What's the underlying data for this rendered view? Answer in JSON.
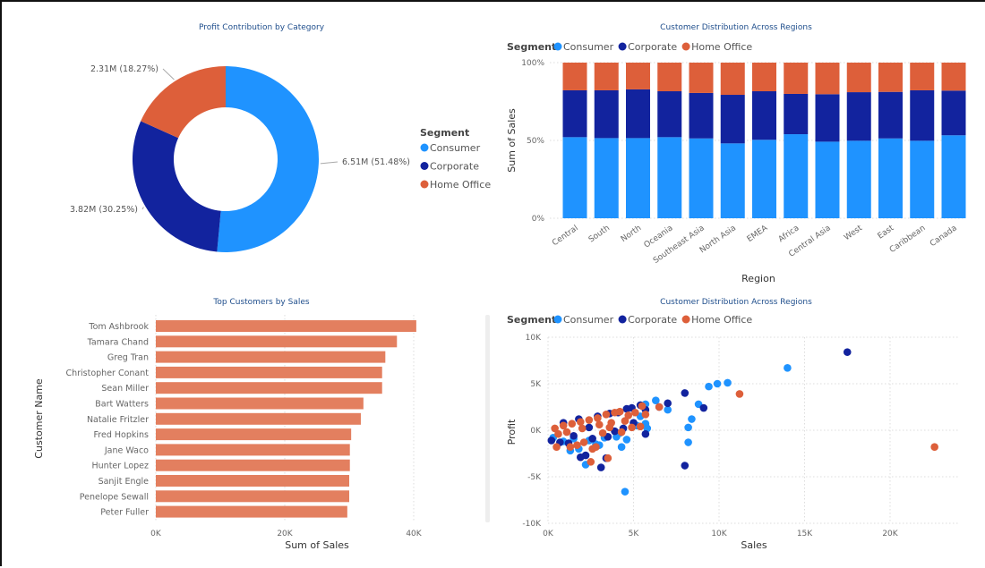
{
  "colors": {
    "Consumer": "#1f93ff",
    "Corporate": "#12239e",
    "Home Office": "#dd5f3a",
    "bar": "#e37f5f",
    "title": "#1f4e8c"
  },
  "chart_data": [
    {
      "type": "pie",
      "title": "Profit Contribution by Category",
      "legend_title": "Segment",
      "legend_position": "right",
      "slices": [
        {
          "name": "Consumer",
          "value": 6.51,
          "label": "6.51M (51.48%)",
          "percent": 51.48
        },
        {
          "name": "Corporate",
          "value": 3.82,
          "label": "3.82M (30.25%)",
          "percent": 30.25
        },
        {
          "name": "Home Office",
          "value": 2.31,
          "label": "2.31M (18.27%)",
          "percent": 18.27
        }
      ]
    },
    {
      "type": "bar",
      "stacked": "percent",
      "title": "Customer Distribution Across Regions",
      "legend_title": "Segment",
      "legend_position": "top-left",
      "xlabel": "Region",
      "ylabel": "Sum of Sales",
      "yticks": [
        "0%",
        "50%",
        "100%"
      ],
      "categories": [
        "Central",
        "South",
        "North",
        "Oceania",
        "Southeast Asia",
        "North Asia",
        "EMEA",
        "Africa",
        "Central Asia",
        "West",
        "East",
        "Caribbean",
        "Canada"
      ],
      "series": [
        {
          "name": "Consumer",
          "values": [
            52.1,
            51.5,
            51.5,
            52.1,
            51.3,
            48.1,
            50.4,
            54.0,
            49.2,
            49.8,
            51.3,
            49.8,
            53.3
          ]
        },
        {
          "name": "Corporate",
          "values": [
            30.1,
            30.7,
            31.3,
            29.5,
            29.2,
            31.2,
            31.2,
            25.9,
            30.5,
            31.2,
            29.9,
            32.4,
            28.7
          ]
        },
        {
          "name": "Home Office",
          "values": [
            17.8,
            17.8,
            17.2,
            18.4,
            19.5,
            20.7,
            18.4,
            20.1,
            20.3,
            19.0,
            18.8,
            17.8,
            18.0
          ]
        }
      ]
    },
    {
      "type": "bar",
      "orientation": "horizontal",
      "title": "Top Customers by Sales",
      "xlabel": "Sum of Sales",
      "ylabel": "Customer Name",
      "xlim": [
        0,
        40000
      ],
      "xticks": [
        "0K",
        "20K",
        "40K"
      ],
      "categories": [
        "Tom Ashbrook",
        "Tamara Chand",
        "Greg Tran",
        "Christopher Conant",
        "Sean Miller",
        "Bart Watters",
        "Natalie Fritzler",
        "Fred Hopkins",
        "Jane Waco",
        "Hunter Lopez",
        "Sanjit Engle",
        "Penelope Sewall",
        "Peter Fuller"
      ],
      "values": [
        40400,
        37400,
        35600,
        35100,
        35100,
        32200,
        31800,
        30300,
        30100,
        30100,
        30000,
        30000,
        29700
      ]
    },
    {
      "type": "scatter",
      "title": "Customer Distribution Across Regions",
      "legend_title": "Segment",
      "legend_position": "top-left",
      "xlabel": "Sales",
      "ylabel": "Profit",
      "xlim": [
        0,
        24000
      ],
      "ylim": [
        -10000,
        10000
      ],
      "xticks": [
        "0K",
        "5K",
        "10K",
        "15K",
        "20K"
      ],
      "yticks": [
        "-10K",
        "-5K",
        "0K",
        "5K",
        "10K"
      ],
      "series": [
        {
          "name": "Consumer",
          "points": [
            [
              14000,
              6700
            ],
            [
              9400,
              4700
            ],
            [
              9900,
              5000
            ],
            [
              10500,
              5100
            ],
            [
              6300,
              3200
            ],
            [
              7000,
              2200
            ],
            [
              8800,
              2800
            ],
            [
              8400,
              1200
            ],
            [
              8200,
              300
            ],
            [
              8200,
              -1300
            ],
            [
              4500,
              -6600
            ],
            [
              4300,
              -1800
            ],
            [
              4600,
              -1000
            ],
            [
              2200,
              -3700
            ],
            [
              5700,
              2800
            ],
            [
              5700,
              700
            ],
            [
              5800,
              200
            ],
            [
              1300,
              -2200
            ],
            [
              1800,
              -2000
            ],
            [
              2800,
              -1500
            ],
            [
              3000,
              -1600
            ],
            [
              4000,
              -700
            ],
            [
              5400,
              1500
            ],
            [
              300,
              -800
            ],
            [
              900,
              -1200
            ],
            [
              1500,
              -900
            ],
            [
              2400,
              -1100
            ],
            [
              3300,
              -800
            ],
            [
              4200,
              -300
            ],
            [
              5200,
              500
            ]
          ]
        },
        {
          "name": "Corporate",
          "points": [
            [
              17500,
              8400
            ],
            [
              8000,
              4000
            ],
            [
              9100,
              2400
            ],
            [
              7000,
              2900
            ],
            [
              8000,
              -3800
            ],
            [
              3100,
              -4000
            ],
            [
              5700,
              -400
            ],
            [
              1900,
              -2900
            ],
            [
              3400,
              -3000
            ],
            [
              2200,
              -2700
            ],
            [
              4600,
              2300
            ],
            [
              4900,
              2400
            ],
            [
              5700,
              2200
            ],
            [
              5400,
              2700
            ],
            [
              6500,
              2500
            ],
            [
              200,
              -1100
            ],
            [
              700,
              -1300
            ],
            [
              1200,
              -1400
            ],
            [
              3600,
              1800
            ],
            [
              4100,
              1900
            ],
            [
              2900,
              1500
            ],
            [
              1800,
              1200
            ],
            [
              900,
              800
            ],
            [
              3900,
              -100
            ],
            [
              4400,
              200
            ],
            [
              2600,
              -900
            ],
            [
              3500,
              -700
            ],
            [
              5000,
              800
            ],
            [
              1500,
              -600
            ],
            [
              2400,
              300
            ]
          ]
        },
        {
          "name": "Home Office",
          "points": [
            [
              11200,
              3900
            ],
            [
              22600,
              -1800
            ],
            [
              6500,
              2500
            ],
            [
              2500,
              -3400
            ],
            [
              3500,
              -3000
            ],
            [
              500,
              -1800
            ],
            [
              5700,
              1700
            ],
            [
              5500,
              2600
            ],
            [
              5100,
              1900
            ],
            [
              5400,
              400
            ],
            [
              4700,
              1600
            ],
            [
              4200,
              2000
            ],
            [
              3900,
              1900
            ],
            [
              3400,
              1700
            ],
            [
              2900,
              1300
            ],
            [
              2400,
              1100
            ],
            [
              1900,
              900
            ],
            [
              1400,
              700
            ],
            [
              900,
              500
            ],
            [
              400,
              200
            ],
            [
              3200,
              -300
            ],
            [
              2600,
              -2000
            ],
            [
              2800,
              -1800
            ],
            [
              1700,
              -1600
            ],
            [
              1300,
              -1800
            ],
            [
              2100,
              -1300
            ],
            [
              3700,
              800
            ],
            [
              4500,
              1000
            ],
            [
              4900,
              300
            ],
            [
              3000,
              600
            ],
            [
              2000,
              200
            ],
            [
              1100,
              -200
            ],
            [
              600,
              -400
            ],
            [
              4300,
              -200
            ],
            [
              3600,
              300
            ]
          ]
        }
      ]
    }
  ]
}
